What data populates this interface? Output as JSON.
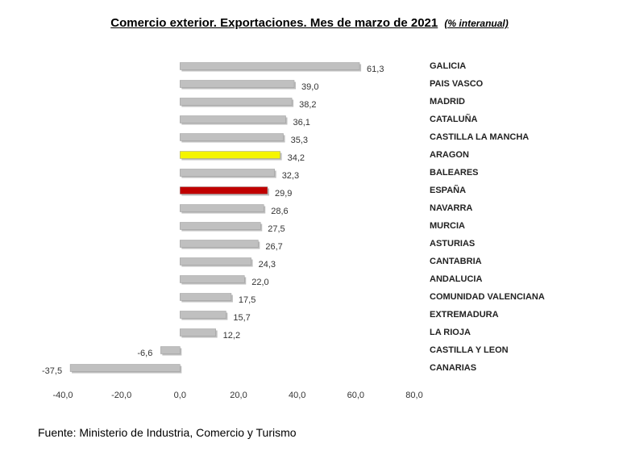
{
  "title": "Comercio exterior. Exportaciones. Mes de marzo de 2021",
  "subtitle": "(% interanual)",
  "source": "Fuente: Ministerio de Industria, Comercio y Turismo",
  "chart_data": {
    "type": "bar",
    "orientation": "horizontal",
    "categories": [
      "GALICIA",
      "PAIS VASCO",
      "MADRID",
      "CATALUÑA",
      "CASTILLA LA MANCHA",
      "ARAGON",
      "BALEARES",
      "ESPAÑA",
      "NAVARRA",
      "MURCIA",
      "ASTURIAS",
      "CANTABRIA",
      "ANDALUCIA",
      "COMUNIDAD VALENCIANA",
      "EXTREMADURA",
      "LA RIOJA",
      "CASTILLA Y LEON",
      "CANARIAS"
    ],
    "values": [
      61.3,
      39.0,
      38.2,
      36.1,
      35.3,
      34.2,
      32.3,
      29.9,
      28.6,
      27.5,
      26.7,
      24.3,
      22.0,
      17.5,
      15.7,
      12.2,
      -6.6,
      -37.5
    ],
    "value_labels": [
      "61,3",
      "39,0",
      "38,2",
      "36,1",
      "35,3",
      "34,2",
      "32,3",
      "29,9",
      "28,6",
      "27,5",
      "26,7",
      "24,3",
      "22,0",
      "17,5",
      "15,7",
      "12,2",
      "-6,6",
      "-37,5"
    ],
    "xlim": [
      -40,
      80
    ],
    "xticks": [
      -40,
      -20,
      0,
      20,
      40,
      60,
      80
    ],
    "xtick_labels": [
      "-40,0",
      "-20,0",
      "0,0",
      "20,0",
      "40,0",
      "60,0",
      "80,0"
    ],
    "grid": false,
    "legend": false,
    "colors": {
      "default": "#c0c0c0",
      "ARAGON": "#f5f500",
      "ESPAÑA": "#c00000"
    }
  }
}
